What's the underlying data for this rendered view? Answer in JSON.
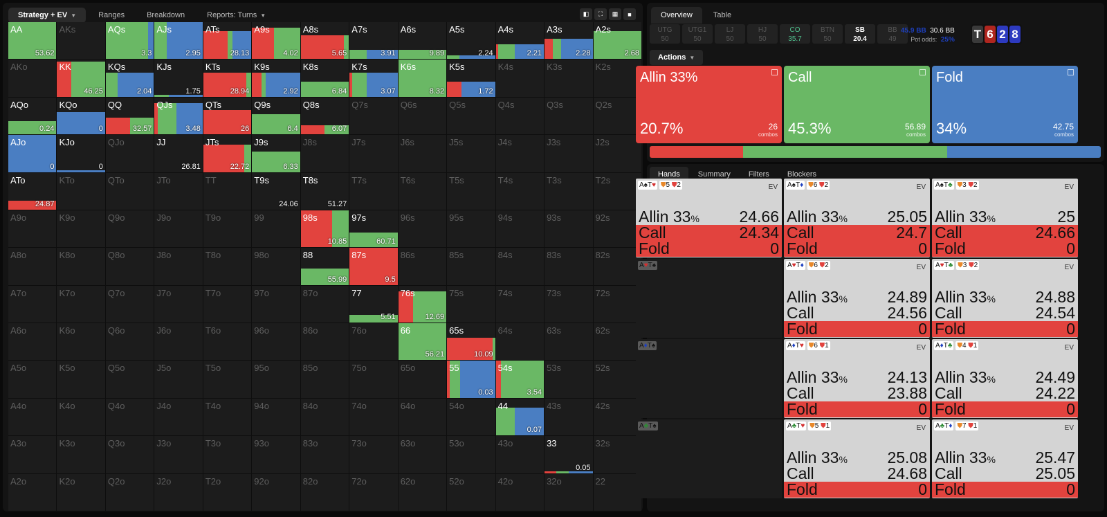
{
  "colors": {
    "allin": "#e2433e",
    "call": "#6ab865",
    "fold": "#4a7ec2"
  },
  "left_tabs": [
    {
      "label": "Strategy + EV",
      "active": true,
      "dropdown": true
    },
    {
      "label": "Ranges"
    },
    {
      "label": "Breakdown"
    },
    {
      "label": "Reports: Turns",
      "dropdown": true
    }
  ],
  "left_icons": [
    "contrast-icon",
    "expand-icon",
    "grid-icon",
    "square-icon"
  ],
  "grid": [
    [
      "AA",
      "AKs",
      "AQs",
      "AJs",
      "ATs",
      "A9s",
      "A8s",
      "A7s",
      "A6s",
      "A5s",
      "A4s",
      "A3s",
      "A2s"
    ],
    [
      "AKo",
      "KK",
      "KQs",
      "KJs",
      "KTs",
      "K9s",
      "K8s",
      "K7s",
      "K6s",
      "K5s",
      "K4s",
      "K3s",
      "K2s"
    ],
    [
      "AQo",
      "KQo",
      "QQ",
      "QJs",
      "QTs",
      "Q9s",
      "Q8s",
      "Q7s",
      "Q6s",
      "Q5s",
      "Q4s",
      "Q3s",
      "Q2s"
    ],
    [
      "AJo",
      "KJo",
      "QJo",
      "JJ",
      "JTs",
      "J9s",
      "J8s",
      "J7s",
      "J6s",
      "J5s",
      "J4s",
      "J3s",
      "J2s"
    ],
    [
      "ATo",
      "KTo",
      "QTo",
      "JTo",
      "TT",
      "T9s",
      "T8s",
      "T7s",
      "T6s",
      "T5s",
      "T4s",
      "T3s",
      "T2s"
    ],
    [
      "A9o",
      "K9o",
      "Q9o",
      "J9o",
      "T9o",
      "99",
      "98s",
      "97s",
      "96s",
      "95s",
      "94s",
      "93s",
      "92s"
    ],
    [
      "A8o",
      "K8o",
      "Q8o",
      "J8o",
      "T8o",
      "98o",
      "88",
      "87s",
      "86s",
      "85s",
      "84s",
      "83s",
      "82s"
    ],
    [
      "A7o",
      "K7o",
      "Q7o",
      "J7o",
      "T7o",
      "97o",
      "87o",
      "77",
      "76s",
      "75s",
      "74s",
      "73s",
      "72s"
    ],
    [
      "A6o",
      "K6o",
      "Q6o",
      "J6o",
      "T6o",
      "96o",
      "86o",
      "76o",
      "66",
      "65s",
      "64s",
      "63s",
      "62s"
    ],
    [
      "A5o",
      "K5o",
      "Q5o",
      "J5o",
      "T5o",
      "95o",
      "85o",
      "75o",
      "65o",
      "55",
      "54s",
      "53s",
      "52s"
    ],
    [
      "A4o",
      "K4o",
      "Q4o",
      "J4o",
      "T4o",
      "94o",
      "84o",
      "74o",
      "64o",
      "54o",
      "44",
      "43s",
      "42s"
    ],
    [
      "A3o",
      "K3o",
      "Q3o",
      "J3o",
      "T3o",
      "93o",
      "83o",
      "73o",
      "63o",
      "53o",
      "43o",
      "33",
      "32s"
    ],
    [
      "A2o",
      "K2o",
      "Q2o",
      "J2o",
      "T2o",
      "92o",
      "82o",
      "72o",
      "62o",
      "52o",
      "42o",
      "32o",
      "22"
    ]
  ],
  "cells": {
    "AA": {
      "h": 1.0,
      "a": 0,
      "c": 1,
      "f": 0,
      "ev": "53.62"
    },
    "AQs": {
      "h": 1.0,
      "a": 0,
      "c": 0.88,
      "f": 0.12,
      "ev": "3.3"
    },
    "AJs": {
      "h": 1.0,
      "a": 0,
      "c": 0.25,
      "f": 0.75,
      "ev": "2.95"
    },
    "ATs": {
      "h": 0.75,
      "a": 0.5,
      "c": 0.1,
      "f": 0.4,
      "ev": "28.13"
    },
    "A9s": {
      "h": 0.85,
      "a": 0.45,
      "c": 0.55,
      "f": 0,
      "ev": "4.02"
    },
    "A8s": {
      "h": 0.65,
      "a": 0.9,
      "c": 0.1,
      "f": 0,
      "ev": "5.65"
    },
    "A7s": {
      "h": 0.25,
      "a": 0,
      "c": 0.35,
      "f": 0.65,
      "ev": "3.91"
    },
    "A6s": {
      "h": 0.25,
      "a": 0,
      "c": 1,
      "f": 0,
      "ev": "9.89"
    },
    "A5s": {
      "h": 0.1,
      "a": 0,
      "c": 0.25,
      "f": 0.75,
      "ev": "2.24"
    },
    "A4s": {
      "h": 0.4,
      "a": 0.05,
      "c": 0.35,
      "f": 0.6,
      "ev": "2.21"
    },
    "A3s": {
      "h": 0.55,
      "a": 0.17,
      "c": 0.17,
      "f": 0.66,
      "ev": "2.28"
    },
    "A2s": {
      "h": 0.75,
      "a": 0,
      "c": 1,
      "f": 0,
      "ev": "2.68"
    },
    "KK": {
      "h": 0.95,
      "a": 0.3,
      "c": 0.7,
      "f": 0,
      "ev": "46.25"
    },
    "KQs": {
      "h": 0.65,
      "a": 0,
      "c": 0.25,
      "f": 0.75,
      "ev": "2.04"
    },
    "KJs": {
      "h": 0.05,
      "a": 0,
      "c": 0.3,
      "f": 0.7,
      "ev": "1.75"
    },
    "KTs": {
      "h": 0.65,
      "a": 0.9,
      "c": 0.1,
      "f": 0,
      "ev": "28.94"
    },
    "K9s": {
      "h": 0.65,
      "a": 0.2,
      "c": 0.08,
      "f": 0.72,
      "ev": "2.92"
    },
    "K8s": {
      "h": 0.4,
      "a": 0,
      "c": 1,
      "f": 0,
      "ev": "6.84"
    },
    "K7s": {
      "h": 0.65,
      "a": 0.05,
      "c": 0.3,
      "f": 0.65,
      "ev": "3.07"
    },
    "K6s": {
      "h": 1.0,
      "a": 0,
      "c": 1,
      "f": 0,
      "ev": "8.32"
    },
    "K5s": {
      "h": 0.4,
      "a": 0.3,
      "c": 0,
      "f": 0.7,
      "ev": "1.72"
    },
    "AQo": {
      "h": 0.35,
      "a": 0,
      "c": 1,
      "f": 0,
      "ev": "0.24"
    },
    "KQo": {
      "h": 0.6,
      "a": 0,
      "c": 0,
      "f": 1,
      "ev": "0"
    },
    "QQ": {
      "h": 0.45,
      "a": 0.5,
      "c": 0.5,
      "f": 0,
      "ev": "32.57"
    },
    "QJs": {
      "h": 0.85,
      "a": 0.06,
      "c": 0.4,
      "f": 0.54,
      "ev": "3.48"
    },
    "QTs": {
      "h": 0.65,
      "a": 1,
      "c": 0,
      "f": 0,
      "ev": "26"
    },
    "Q9s": {
      "h": 0.55,
      "a": 0,
      "c": 1,
      "f": 0,
      "ev": "6.4"
    },
    "Q8s": {
      "h": 0.25,
      "a": 0.5,
      "c": 0.5,
      "f": 0,
      "ev": "6.07"
    },
    "AJo": {
      "h": 1.0,
      "a": 0,
      "c": 0,
      "f": 1,
      "ev": "0"
    },
    "KJo": {
      "h": 0.05,
      "a": 0,
      "c": 0,
      "f": 1,
      "ev": "0"
    },
    "JJ": {
      "h": 0,
      "a": 0,
      "c": 0,
      "f": 0,
      "ev": "26.81"
    },
    "JTs": {
      "h": 0.75,
      "a": 0.85,
      "c": 0.15,
      "f": 0,
      "ev": "22.72"
    },
    "J9s": {
      "h": 0.55,
      "a": 0,
      "c": 1,
      "f": 0,
      "ev": "6.33"
    },
    "ATo": {
      "h": 0.25,
      "a": 1,
      "c": 0,
      "f": 0,
      "ev": "24.87"
    },
    "T9s": {
      "h": 0,
      "a": 0,
      "c": 0,
      "f": 0,
      "ev": "24.06"
    },
    "T8s": {
      "h": 0,
      "a": 0,
      "c": 0,
      "f": 0,
      "ev": "51.27"
    },
    "98s": {
      "h": 1.0,
      "a": 0.65,
      "c": 0.35,
      "f": 0,
      "ev": "10.85"
    },
    "97s": {
      "h": 0.4,
      "a": 0,
      "c": 1,
      "f": 0,
      "ev": "60.71"
    },
    "88": {
      "h": 0.45,
      "a": 0,
      "c": 1,
      "f": 0,
      "ev": "55.99"
    },
    "87s": {
      "h": 1.0,
      "a": 1,
      "c": 0,
      "f": 0,
      "ev": "9.5"
    },
    "77": {
      "h": 0.2,
      "a": 0,
      "c": 1,
      "f": 0,
      "ev": "5.51"
    },
    "76s": {
      "h": 0.85,
      "a": 0.3,
      "c": 0.7,
      "f": 0,
      "ev": "12.69"
    },
    "66": {
      "h": 1.0,
      "a": 0,
      "c": 1,
      "f": 0,
      "ev": "56.21"
    },
    "65s": {
      "h": 0.6,
      "a": 0.95,
      "c": 0.05,
      "f": 0,
      "ev": "10.09"
    },
    "55": {
      "h": 1.0,
      "a": 0.05,
      "c": 0.22,
      "f": 0.73,
      "ev": "0.03"
    },
    "54s": {
      "h": 1.0,
      "a": 0.1,
      "c": 0.9,
      "f": 0,
      "ev": "3.54"
    },
    "44": {
      "h": 0.75,
      "a": 0,
      "c": 0.4,
      "f": 0.6,
      "ev": "0.07"
    },
    "33": {
      "h": 0.05,
      "a": 0.25,
      "c": 0.25,
      "f": 0.5,
      "ev": "0.05"
    }
  },
  "right_tabs": [
    {
      "label": "Overview",
      "active": true
    },
    {
      "label": "Table"
    }
  ],
  "positions": [
    {
      "name": "UTG",
      "stack": "50"
    },
    {
      "name": "UTG1",
      "stack": "50"
    },
    {
      "name": "LJ",
      "stack": "50"
    },
    {
      "name": "HJ",
      "stack": "50"
    },
    {
      "name": "CO",
      "stack": "35.7",
      "active": "co"
    },
    {
      "name": "BTN",
      "stack": "50"
    },
    {
      "name": "SB",
      "stack": "20.4",
      "active": "sb"
    },
    {
      "name": "BB",
      "stack": "49"
    }
  ],
  "pot": {
    "total": "45.9 BB",
    "current": "30.6 BB",
    "odds_label": "Pot odds:",
    "odds": "25%"
  },
  "board": [
    {
      "rank": "T",
      "color": "#3a3a3a"
    },
    {
      "rank": "6",
      "color": "#b0261f"
    },
    {
      "rank": "2",
      "color": "#2d3ac0"
    },
    {
      "rank": "8",
      "color": "#2d3ac0"
    }
  ],
  "actions_label": "Actions",
  "actions": [
    {
      "name": "Allin 33%",
      "pct": "20.7%",
      "combos": "26",
      "combos_label": "combos",
      "color": "#e2433e",
      "freq": 20.7
    },
    {
      "name": "Call",
      "pct": "45.3%",
      "combos": "56.89",
      "combos_label": "combos",
      "color": "#6ab865",
      "freq": 45.3
    },
    {
      "name": "Fold",
      "pct": "34%",
      "combos": "42.75",
      "combos_label": "combos",
      "color": "#4a7ec2",
      "freq": 34
    }
  ],
  "hand_tabs": [
    {
      "label": "Hands",
      "active": true
    },
    {
      "label": "Summary"
    },
    {
      "label": "Filters"
    },
    {
      "label": "Blockers"
    }
  ],
  "hands": [
    {
      "cards": [
        [
          "A",
          "k"
        ],
        [
          "♠",
          "k"
        ],
        [
          "T",
          "k"
        ],
        [
          "♥",
          "r"
        ]
      ],
      "blockers": "5",
      "blockers2": "2",
      "ev_label": "EV",
      "rows": [
        {
          "label": "Allin 33",
          "unit": "%",
          "val": "24.66",
          "red": false
        },
        {
          "label": "Call",
          "val": "24.34",
          "red": true
        },
        {
          "label": "Fold",
          "val": "0",
          "red": true
        }
      ]
    },
    {
      "cards": [
        [
          "A",
          "k"
        ],
        [
          "♠",
          "k"
        ],
        [
          "T",
          "k"
        ],
        [
          "♦",
          "b"
        ]
      ],
      "blockers": "6",
      "blockers2": "2",
      "ev_label": "EV",
      "rows": [
        {
          "label": "Allin 33",
          "unit": "%",
          "val": "25.05",
          "red": false
        },
        {
          "label": "Call",
          "val": "24.7",
          "red": true
        },
        {
          "label": "Fold",
          "val": "0",
          "red": true
        }
      ]
    },
    {
      "cards": [
        [
          "A",
          "k"
        ],
        [
          "♠",
          "k"
        ],
        [
          "T",
          "k"
        ],
        [
          "♣",
          "g"
        ]
      ],
      "blockers": "3",
      "blockers2": "2",
      "ev_label": "EV",
      "rows": [
        {
          "label": "Allin 33",
          "unit": "%",
          "val": "25",
          "red": false
        },
        {
          "label": "Call",
          "val": "24.66",
          "red": true
        },
        {
          "label": "Fold",
          "val": "0",
          "red": true
        }
      ]
    },
    {
      "empty": true,
      "cards": [
        [
          "A",
          "k"
        ],
        [
          "♥",
          "r"
        ],
        [
          "T",
          "k"
        ],
        [
          "♠",
          "k"
        ]
      ]
    },
    {
      "cards": [
        [
          "A",
          "k"
        ],
        [
          "♥",
          "r"
        ],
        [
          "T",
          "k"
        ],
        [
          "♦",
          "b"
        ]
      ],
      "blockers": "6",
      "blockers2": "2",
      "ev_label": "EV",
      "rows": [
        {
          "label": "Allin 33",
          "unit": "%",
          "val": "24.89",
          "red": false
        },
        {
          "label": "Call",
          "val": "24.56",
          "red": false
        },
        {
          "label": "Fold",
          "val": "0",
          "red": true
        }
      ]
    },
    {
      "cards": [
        [
          "A",
          "k"
        ],
        [
          "♥",
          "r"
        ],
        [
          "T",
          "k"
        ],
        [
          "♣",
          "g"
        ]
      ],
      "blockers": "3",
      "blockers2": "2",
      "ev_label": "EV",
      "rows": [
        {
          "label": "Allin 33",
          "unit": "%",
          "val": "24.88",
          "red": false
        },
        {
          "label": "Call",
          "val": "24.54",
          "red": false
        },
        {
          "label": "Fold",
          "val": "0",
          "red": true
        }
      ]
    },
    {
      "empty": true,
      "cards": [
        [
          "A",
          "k"
        ],
        [
          "♦",
          "b"
        ],
        [
          "T",
          "k"
        ],
        [
          "♠",
          "k"
        ]
      ]
    },
    {
      "cards": [
        [
          "A",
          "k"
        ],
        [
          "♦",
          "b"
        ],
        [
          "T",
          "k"
        ],
        [
          "♥",
          "r"
        ]
      ],
      "blockers": "6",
      "blockers2": "1",
      "ev_label": "EV",
      "rows": [
        {
          "label": "Allin 33",
          "unit": "%",
          "val": "24.13",
          "red": false
        },
        {
          "label": "Call",
          "val": "23.88",
          "red": false
        },
        {
          "label": "Fold",
          "val": "0",
          "red": true
        }
      ]
    },
    {
      "cards": [
        [
          "A",
          "k"
        ],
        [
          "♦",
          "b"
        ],
        [
          "T",
          "k"
        ],
        [
          "♣",
          "g"
        ]
      ],
      "blockers": "4",
      "blockers2": "1",
      "ev_label": "EV",
      "rows": [
        {
          "label": "Allin 33",
          "unit": "%",
          "val": "24.49",
          "red": false
        },
        {
          "label": "Call",
          "val": "24.22",
          "red": false
        },
        {
          "label": "Fold",
          "val": "0",
          "red": true
        }
      ]
    },
    {
      "empty": true,
      "cards": [
        [
          "A",
          "k"
        ],
        [
          "♣",
          "g"
        ],
        [
          "T",
          "k"
        ],
        [
          "♠",
          "k"
        ]
      ]
    },
    {
      "cards": [
        [
          "A",
          "k"
        ],
        [
          "♣",
          "g"
        ],
        [
          "T",
          "k"
        ],
        [
          "♥",
          "r"
        ]
      ],
      "blockers": "5",
      "blockers2": "1",
      "ev_label": "EV",
      "rows": [
        {
          "label": "Allin 33",
          "unit": "%",
          "val": "25.08",
          "red": false
        },
        {
          "label": "Call",
          "val": "24.68",
          "red": false
        },
        {
          "label": "Fold",
          "val": "0",
          "red": true
        }
      ]
    },
    {
      "cards": [
        [
          "A",
          "k"
        ],
        [
          "♣",
          "g"
        ],
        [
          "T",
          "k"
        ],
        [
          "♦",
          "b"
        ]
      ],
      "blockers": "7",
      "blockers2": "1",
      "ev_label": "EV",
      "rows": [
        {
          "label": "Allin 33",
          "unit": "%",
          "val": "25.47",
          "red": false
        },
        {
          "label": "Call",
          "val": "25.05",
          "red": false
        },
        {
          "label": "Fold",
          "val": "0",
          "red": true
        }
      ]
    }
  ]
}
